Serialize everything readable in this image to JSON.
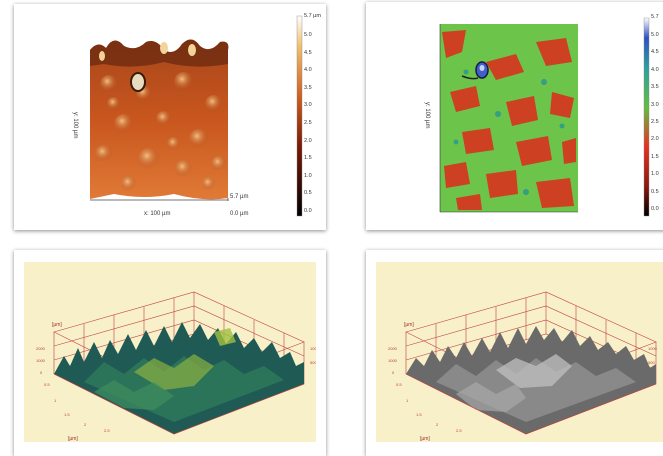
{
  "panel_tl": {
    "x_axis_label": "x: 100 µm",
    "y_axis_label": "y: 100 µm",
    "z_max_label": "5.7 µm",
    "z_min_label": "0.0 µm",
    "colorbar_top": "5.7 µm",
    "colorbar_ticks": [
      "5.0",
      "4.5",
      "4.0",
      "3.5",
      "3.0",
      "2.5",
      "2.0",
      "1.5",
      "1.0",
      "0.5",
      "0.0"
    ]
  },
  "panel_tr": {
    "y_axis_label": "y: 100 µm",
    "colorbar_top": "5.7",
    "colorbar_ticks": [
      "5.0",
      "4.5",
      "4.0",
      "3.5",
      "3.0",
      "2.5",
      "2.0",
      "1.5",
      "1.0",
      "0.5",
      "0.0"
    ]
  },
  "panel_bl": {
    "z_axis_label": "[µm]",
    "x_axis_label": "[µm]"
  },
  "panel_br": {
    "z_axis_label": "[µm]",
    "x_axis_label": "[µm]"
  },
  "colors": {
    "cream": "#f8f0c8",
    "copper": "#c8561e",
    "green_map": "#6cc44a",
    "red_map": "#d8321e",
    "teal_surface": "#1f5a55",
    "gray_surface": "#777777",
    "frame_red": "#c04040"
  }
}
